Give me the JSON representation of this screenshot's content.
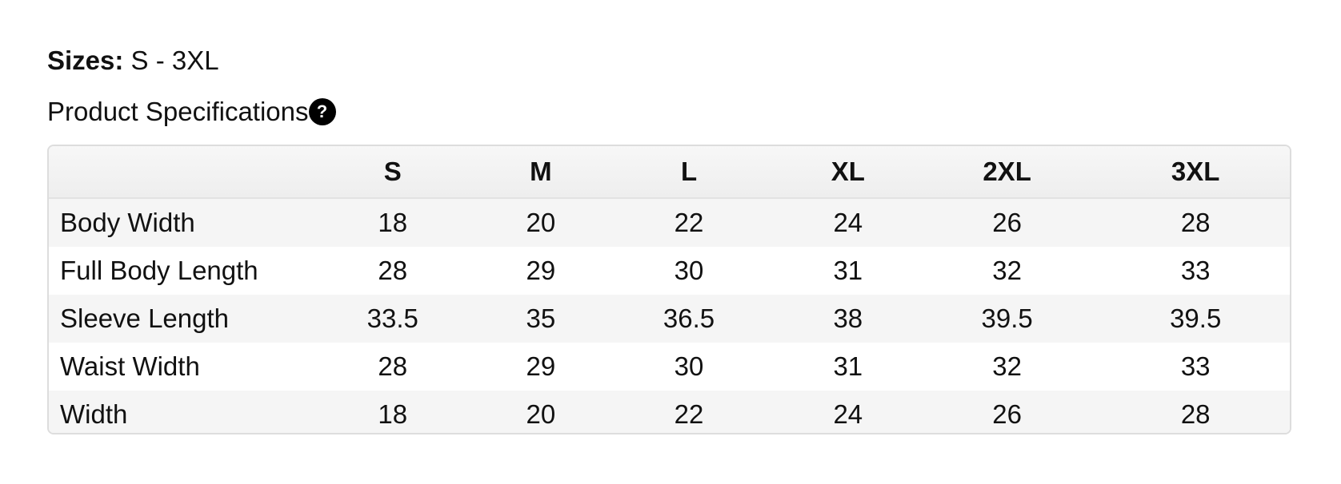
{
  "sizes": {
    "label": "Sizes:",
    "value": "S - 3XL"
  },
  "specifications": {
    "title": "Product Specifications",
    "help_icon": "question-circle-icon",
    "columns": [
      "",
      "S",
      "M",
      "L",
      "XL",
      "2XL",
      "3XL"
    ],
    "rows": [
      {
        "label": "Body Width",
        "values": [
          "18",
          "20",
          "22",
          "24",
          "26",
          "28"
        ]
      },
      {
        "label": "Full Body Length",
        "values": [
          "28",
          "29",
          "30",
          "31",
          "32",
          "33"
        ]
      },
      {
        "label": "Sleeve Length",
        "values": [
          "33.5",
          "35",
          "36.5",
          "38",
          "39.5",
          "39.5"
        ]
      },
      {
        "label": "Waist Width",
        "values": [
          "28",
          "29",
          "30",
          "31",
          "32",
          "33"
        ]
      },
      {
        "label": "Width",
        "values": [
          "18",
          "20",
          "22",
          "24",
          "26",
          "28"
        ]
      }
    ]
  }
}
